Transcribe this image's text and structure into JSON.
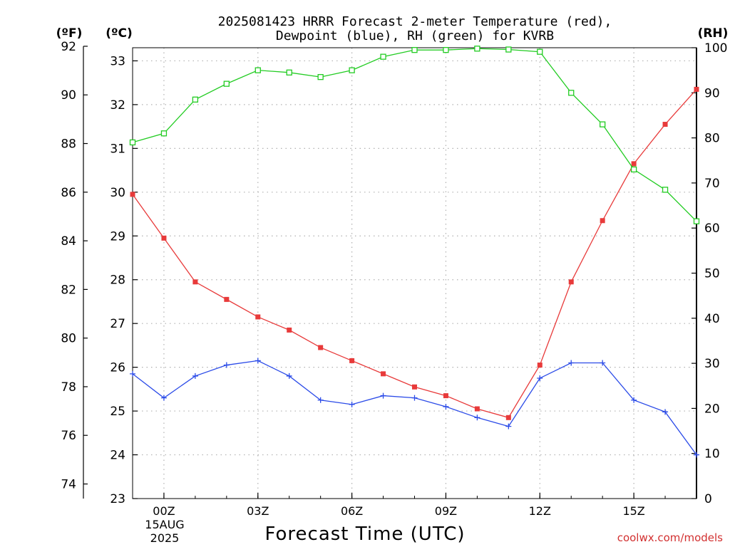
{
  "chart_data": {
    "type": "line",
    "title_line1": "2025081423 HRRR Forecast 2-meter Temperature (red),",
    "title_line2": "Dewpoint (blue), RH (green) for KVRB",
    "xlabel": "Forecast Time (UTC)",
    "date_label_line1": "15AUG",
    "date_label_line2": "2025",
    "credit": "coolwx.com/models",
    "left_outer_axis": {
      "unit_label": "(ºF)",
      "ticks": [
        74,
        76,
        78,
        80,
        82,
        84,
        86,
        88,
        90,
        92
      ]
    },
    "left_inner_axis": {
      "unit_label": "(ºC)",
      "ticks": [
        23,
        24,
        25,
        26,
        27,
        28,
        29,
        30,
        31,
        32,
        33
      ],
      "ylim": [
        23,
        33.3
      ]
    },
    "right_axis": {
      "unit_label": "(RH)",
      "ticks": [
        0,
        10,
        20,
        30,
        40,
        50,
        60,
        70,
        80,
        90,
        100
      ],
      "ylim": [
        0,
        100
      ]
    },
    "x": [
      -1,
      0,
      1,
      2,
      3,
      4,
      5,
      6,
      7,
      8,
      9,
      10,
      11,
      12,
      13,
      14,
      15,
      16,
      17
    ],
    "xlim": [
      -1,
      17
    ],
    "x_ticks": [
      0,
      3,
      6,
      9,
      12,
      15
    ],
    "x_tick_labels": [
      "00Z",
      "03Z",
      "06Z",
      "09Z",
      "12Z",
      "15Z"
    ],
    "grid": true,
    "series": [
      {
        "id": "temperature",
        "axis": "celsius",
        "color": "#e83a3a",
        "marker": "filled-square",
        "values": [
          29.95,
          28.95,
          27.95,
          27.55,
          27.15,
          26.85,
          26.45,
          26.15,
          25.85,
          25.55,
          25.35,
          25.05,
          24.85,
          26.05,
          27.95,
          29.35,
          30.65,
          31.55,
          32.35
        ]
      },
      {
        "id": "dewpoint",
        "axis": "celsius",
        "color": "#2b4be8",
        "marker": "plus",
        "values": [
          25.85,
          25.3,
          25.8,
          26.05,
          26.15,
          25.8,
          25.25,
          25.15,
          25.35,
          25.3,
          25.1,
          24.85,
          24.65,
          25.75,
          26.1,
          26.1,
          25.25,
          24.98,
          24.0
        ]
      },
      {
        "id": "relative-humidity",
        "axis": "rh",
        "color": "#22cc22",
        "marker": "open-square",
        "values": [
          79.0,
          81.0,
          88.5,
          92.0,
          95.0,
          94.5,
          93.5,
          95.0,
          98.0,
          99.5,
          99.5,
          99.8,
          99.6,
          99.1,
          90.0,
          83.0,
          73.0,
          68.5,
          61.5
        ]
      }
    ]
  }
}
